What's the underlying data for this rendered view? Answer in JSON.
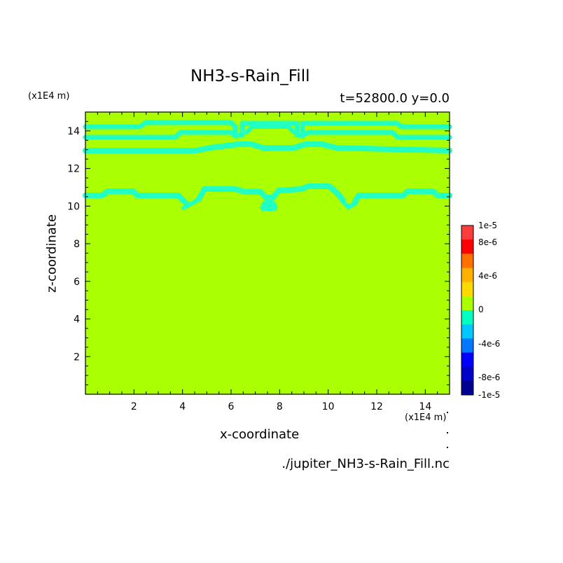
{
  "chart_data": {
    "type": "heatmap",
    "title": "NH3-s-Rain_Fill",
    "subtitle": "t=52800.0 y=0.0",
    "xlabel": "x-coordinate",
    "ylabel": "z-coordinate",
    "x_unit": "(x1E4 m)",
    "y_unit": "(x1E4 m)",
    "xlim": [
      0,
      15
    ],
    "ylim": [
      0,
      15
    ],
    "x_ticks": [
      2,
      4,
      6,
      8,
      10,
      12,
      14
    ],
    "y_ticks": [
      2,
      4,
      6,
      8,
      10,
      12,
      14
    ],
    "background_value": "0",
    "filename": "./jupiter_NH3-s-Rain_Fill.nc",
    "colorbar": {
      "labels": [
        "1e-5",
        "8e-6",
        "4e-6",
        "0",
        "-4e-6",
        "-8e-6",
        "-1e-5"
      ],
      "bands": [
        "#ff3c3c",
        "#ff0000",
        "#ff7000",
        "#ffb000",
        "#ffd800",
        "#aaff00",
        "#00ffc0",
        "#00c8ff",
        "#0078ff",
        "#0000ff",
        "#0000c8",
        "#000090"
      ]
    },
    "colors": {
      "zero": "#aaff00",
      "negative_small": "#22ffc2"
    },
    "negative_features": [
      {
        "band": "z≈14.2 upper layer",
        "x_range": [
          0,
          15
        ]
      },
      {
        "band": "z≈13.5 layer",
        "x_range": [
          0,
          15
        ]
      },
      {
        "band": "z≈12.8 layer",
        "x_range": [
          0,
          15
        ]
      },
      {
        "band": "z≈10.5 layer",
        "x_range": [
          0,
          15
        ]
      },
      {
        "band": "blob",
        "x": 7.6,
        "z": 9.9
      }
    ]
  }
}
